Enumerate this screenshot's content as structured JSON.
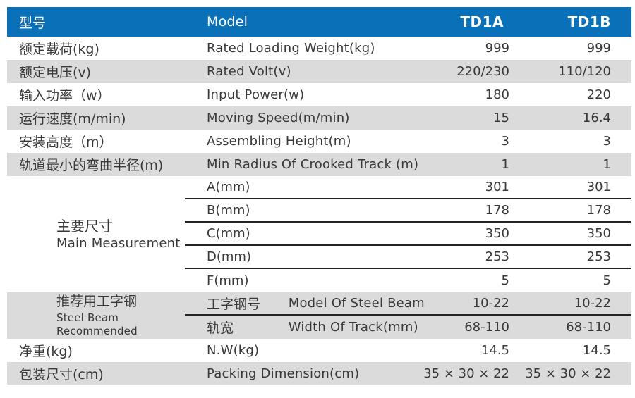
{
  "colors": {
    "header_bg": "#0a70b7",
    "header_text": "#ffffff",
    "row_shade": "#dbdbdb",
    "text": "#383838",
    "divider": "#242424"
  },
  "header": {
    "model_zh": "型号",
    "model_en": "Model",
    "td1a": "TD1A",
    "td1b": "TD1B"
  },
  "spec_rows": [
    {
      "zh": "额定载荷(kg)",
      "en": "Rated Loading Weight(kg)",
      "td1a": "999",
      "td1b": "999"
    },
    {
      "zh": "额定电压(v)",
      "en": "Rated Volt(v)",
      "td1a": "220/230",
      "td1b": "110/120"
    },
    {
      "zh": "输入功率（w）",
      "en": "Input Power(w)",
      "td1a": "180",
      "td1b": "220"
    },
    {
      "zh": "运行速度(m/min)",
      "en": "Moving Speed(m/min)",
      "td1a": "15",
      "td1b": "16.4"
    },
    {
      "zh": "安装高度（m）",
      "en": "Assembling Height(m)",
      "td1a": "3",
      "td1b": "3"
    },
    {
      "zh": "轨道最小的弯曲半径(m)",
      "en": "Min Radius Of Crooked Track (m)",
      "td1a": "1",
      "td1b": "1"
    }
  ],
  "main_measurement": {
    "zh": "主要尺寸",
    "en": "Main Measurement",
    "rows": [
      {
        "label": "A(mm)",
        "td1a": "301",
        "td1b": "301"
      },
      {
        "label": "B(mm)",
        "td1a": "178",
        "td1b": "178"
      },
      {
        "label": "C(mm)",
        "td1a": "350",
        "td1b": "350"
      },
      {
        "label": "D(mm)",
        "td1a": "253",
        "td1b": "253"
      },
      {
        "label": "F(mm)",
        "td1a": "5",
        "td1b": "5"
      }
    ]
  },
  "steel_beam": {
    "zh": "推荐用工字钢",
    "en": "Steel Beam Recommended",
    "rows": [
      {
        "zh": "工字钢号",
        "en": "Model Of Steel Beam",
        "td1a": "10-22",
        "td1b": "10-22"
      },
      {
        "zh": "轨宽",
        "en": "Width Of Track(mm)",
        "td1a": "68-110",
        "td1b": "68-110"
      }
    ]
  },
  "bottom_rows": [
    {
      "zh": "净重(kg)",
      "en": "N.W(kg)",
      "td1a": "14.5",
      "td1b": "14.5"
    },
    {
      "zh": "包装尺寸(cm)",
      "en": "Packing Dimension(cm)",
      "td1a": "35 × 30 × 22",
      "td1b": "35 × 30 × 22"
    }
  ]
}
